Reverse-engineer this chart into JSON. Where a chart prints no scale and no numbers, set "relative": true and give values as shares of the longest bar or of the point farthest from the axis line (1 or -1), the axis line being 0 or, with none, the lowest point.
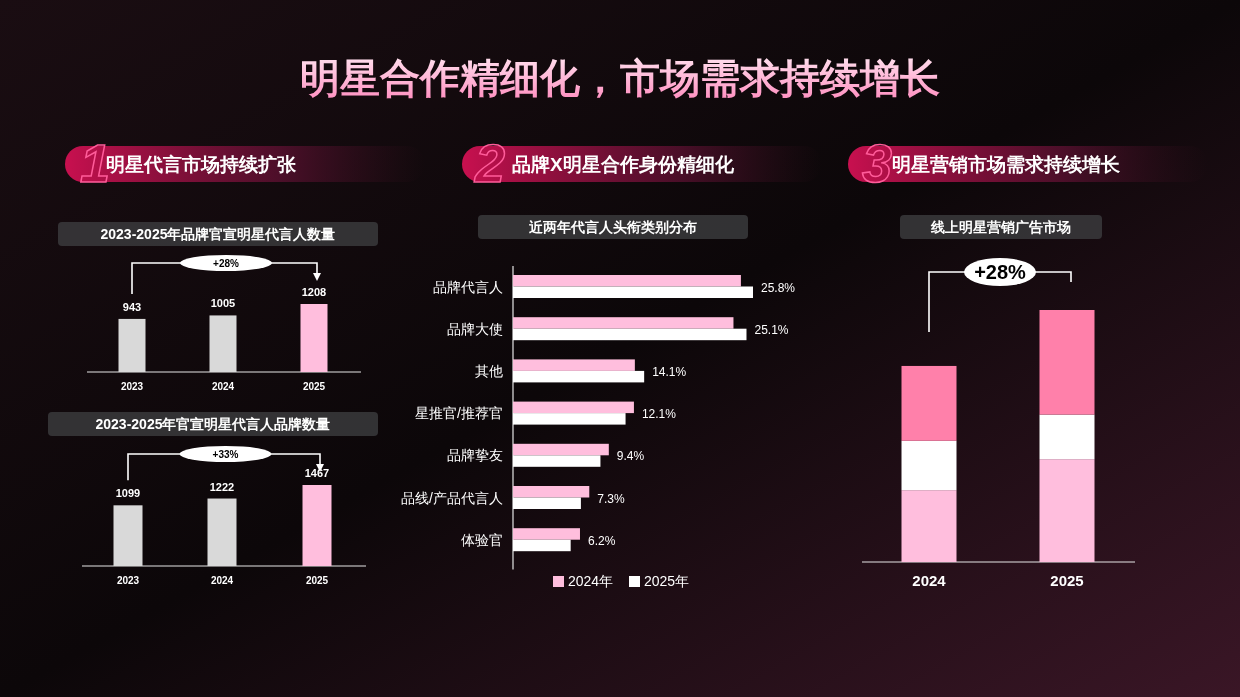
{
  "chart_data": [
    {
      "type": "other",
      "title": "明星合作精细化，市场需求持续增长",
      "annotations": [
        "1",
        "明星代言市场持续扩张",
        "2",
        "品牌X明星合作身份精细化",
        "3",
        "明星营销市场需求持续增长"
      ]
    },
    {
      "type": "bar",
      "title": "2023-2025年品牌官宣明星代言人数量",
      "categories": [
        "2023",
        "2024",
        "2025"
      ],
      "values": [
        943,
        1005,
        1208
      ],
      "colors": [
        "#d9d9d9",
        "#d9d9d9",
        "#ffbedd"
      ],
      "data_labels": true,
      "annotations": [
        "+28%"
      ]
    },
    {
      "type": "bar",
      "title": "2023-2025年官宣明星代言人品牌数量",
      "categories": [
        "2023",
        "2024",
        "2025"
      ],
      "values": [
        1099,
        1222,
        1467
      ],
      "colors": [
        "#d9d9d9",
        "#d9d9d9",
        "#ffbedd"
      ],
      "data_labels": true,
      "annotations": [
        "+33%"
      ]
    },
    {
      "type": "bar",
      "orientation": "horizontal",
      "title": "近两年代言人头衔类别分布",
      "categories": [
        "品牌代言人",
        "品牌大使",
        "其他",
        "星推官/推荐官",
        "品牌挚友",
        "品线/产品代言人",
        "体验官"
      ],
      "legend": "bottom",
      "series": [
        {
          "name": "2024年",
          "color": "#ffbedd",
          "values": [
            24.5,
            23.7,
            13.1,
            13.0,
            10.3,
            8.2,
            7.2
          ]
        },
        {
          "name": "2025年",
          "color": "#ffffff",
          "values": [
            25.8,
            25.1,
            14.1,
            12.1,
            9.4,
            7.3,
            6.2
          ],
          "value_labels": [
            "25.8%",
            "25.1%",
            "14.1%",
            "12.1%",
            "9.4%",
            "7.3%",
            "6.2%"
          ]
        }
      ]
    },
    {
      "type": "bar",
      "stacked": true,
      "relative": true,
      "title": "线上明星营销广告市场",
      "categories": [
        "2024",
        "2025"
      ],
      "annotations": [
        "+28%"
      ],
      "series": [
        {
          "color": "#ffbedd",
          "values": [
            0.285,
            0.408
          ]
        },
        {
          "color": "#ffffff",
          "values": [
            0.196,
            0.177
          ]
        },
        {
          "color": "#ff80aa",
          "values": [
            0.297,
            0.415
          ]
        }
      ]
    }
  ]
}
